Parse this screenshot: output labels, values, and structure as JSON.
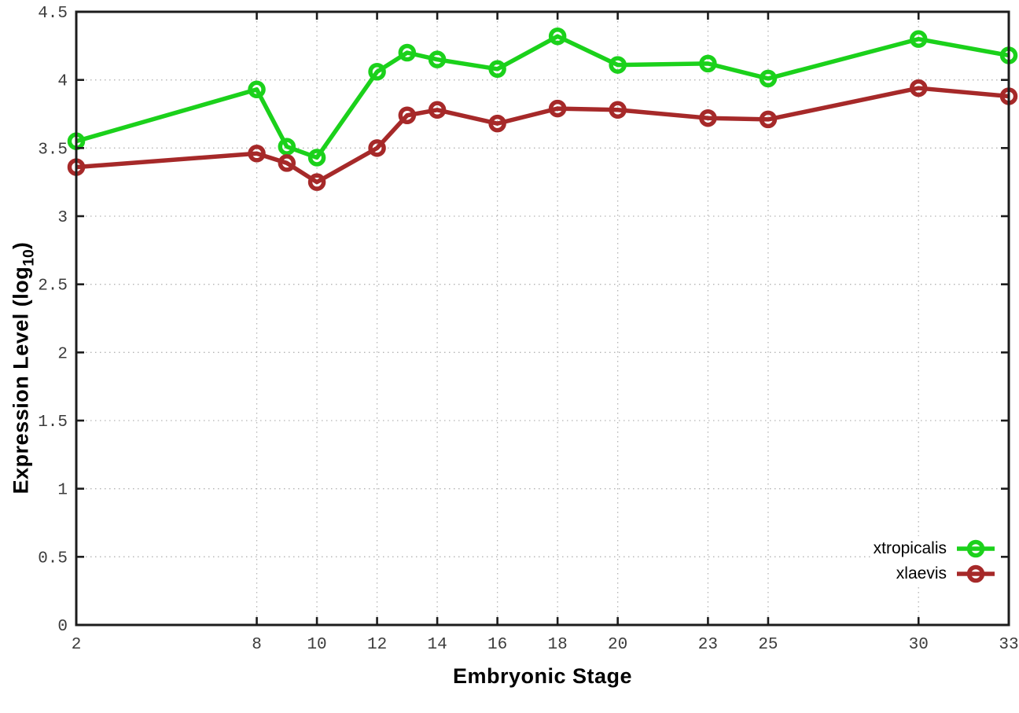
{
  "chart_data": {
    "type": "line",
    "title": "",
    "xlabel": "Embryonic Stage",
    "ylabel": "Expression Level (log10)",
    "ylabel_parts": {
      "main": "Expression Level (log",
      "sub": "10",
      "end": ")"
    },
    "x": [
      2,
      8,
      9,
      10,
      12,
      13,
      14,
      16,
      18,
      20,
      23,
      25,
      30,
      33
    ],
    "series": [
      {
        "name": "xtropicalis",
        "color": "#1bd11b",
        "values": [
          3.55,
          3.93,
          3.51,
          3.43,
          4.06,
          4.2,
          4.15,
          4.08,
          4.32,
          4.11,
          4.12,
          4.01,
          4.3,
          4.18
        ]
      },
      {
        "name": "xlaevis",
        "color": "#a62929",
        "values": [
          3.36,
          3.46,
          3.39,
          3.25,
          3.5,
          3.74,
          3.78,
          3.68,
          3.79,
          3.78,
          3.72,
          3.71,
          3.94,
          3.88
        ]
      }
    ],
    "xlim": [
      2,
      33
    ],
    "ylim": [
      0,
      4.5
    ],
    "xticks": [
      2,
      8,
      10,
      12,
      14,
      16,
      18,
      20,
      23,
      25,
      30,
      33
    ],
    "xtick_labels": [
      "2",
      "8",
      "10",
      "12",
      "14",
      "16",
      "18",
      "20",
      "23",
      "25",
      "30",
      "33"
    ],
    "yticks": [
      0,
      0.5,
      1,
      1.5,
      2,
      2.5,
      3,
      3.5,
      4,
      4.5
    ],
    "ytick_labels": [
      "0",
      "0.5",
      "1",
      "1.5",
      "2",
      "2.5",
      "3",
      "3.5",
      "4",
      "4.5"
    ],
    "grid": true,
    "grid_style": "dotted",
    "legend_position": "bottom-right",
    "marker": "open-circle",
    "colors": {
      "grid": "#b4b4b4",
      "axis": "#1c1c1c",
      "tick_label": "#3c3c3c",
      "background": "#ffffff"
    }
  }
}
